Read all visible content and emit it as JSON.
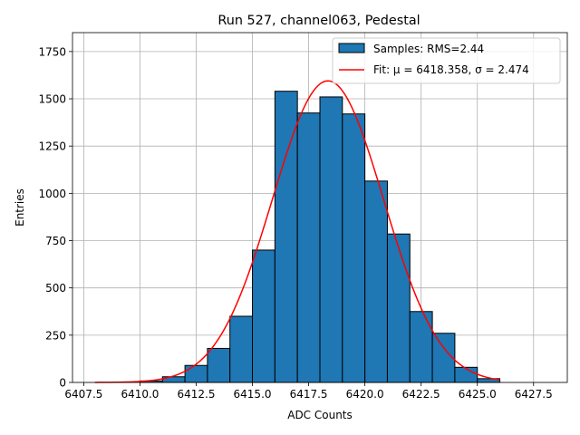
{
  "chart_data": {
    "type": "bar",
    "title": "Run 527, channel063, Pedestal",
    "xlabel": "ADC Counts",
    "ylabel": "Entries",
    "xlim": [
      6407.0,
      6429.0
    ],
    "ylim": [
      0,
      1850
    ],
    "grid": true,
    "legend_position": "top-right",
    "x_ticks": [
      6407.5,
      6410.0,
      6412.5,
      6415.0,
      6417.5,
      6420.0,
      6422.5,
      6425.0,
      6427.5
    ],
    "x_tick_labels": [
      "6407.5",
      "6410.0",
      "6412.5",
      "6415.0",
      "6417.5",
      "6420.0",
      "6422.5",
      "6425.0",
      "6427.5"
    ],
    "y_ticks": [
      0,
      250,
      500,
      750,
      1000,
      1250,
      1500,
      1750
    ],
    "y_tick_labels": [
      "0",
      "250",
      "500",
      "750",
      "1000",
      "1250",
      "1500",
      "1750"
    ],
    "histogram": {
      "name": "Samples: RMS=2.44",
      "color": "#1f77b4",
      "edgecolor": "#000000",
      "bin_edges": [
        6410,
        6411,
        6412,
        6413,
        6414,
        6415,
        6416,
        6417,
        6418,
        6419,
        6420,
        6421,
        6422,
        6423,
        6424,
        6425,
        6426
      ],
      "values": [
        8,
        30,
        90,
        180,
        350,
        700,
        1540,
        1425,
        1510,
        1420,
        1065,
        785,
        375,
        260,
        80,
        20
      ]
    },
    "fit": {
      "name": "Fit: μ = 6418.358, σ = 2.474",
      "color": "#ff0000",
      "mu": 6418.358,
      "sigma": 2.474,
      "amplitude": 1595,
      "x_range": [
        6408.0,
        6426.0
      ]
    }
  }
}
